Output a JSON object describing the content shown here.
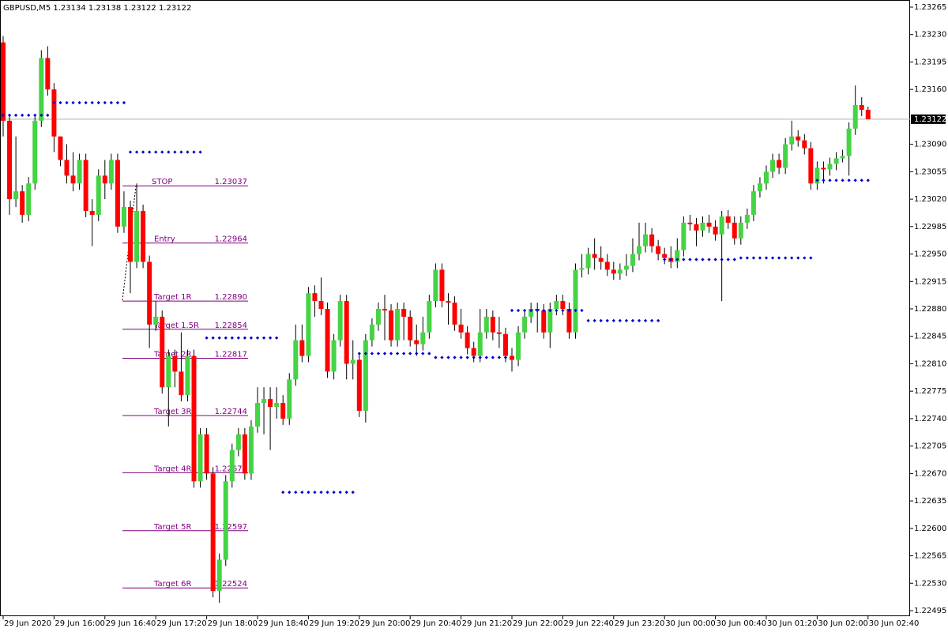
{
  "chart_data": {
    "type": "candlestick",
    "title": "GBPUSD,M5  1.23134 1.23138 1.23122 1.23122",
    "bull_color": "#44d444",
    "bear_color": "#ff0000",
    "level_color": "#0000cc",
    "target_color": "#800080",
    "ylim": [
      1.22495,
      1.23265
    ],
    "yticks": [
      {
        "value": 1.23265,
        "label": "1.23265"
      },
      {
        "value": 1.2323,
        "label": "1.23230"
      },
      {
        "value": 1.23195,
        "label": "1.23195"
      },
      {
        "value": 1.2316,
        "label": "1.23160"
      },
      {
        "value": 1.2309,
        "label": "1.23090"
      },
      {
        "value": 1.23055,
        "label": "1.23055"
      },
      {
        "value": 1.2302,
        "label": "1.23020"
      },
      {
        "value": 1.22985,
        "label": "1.22985"
      },
      {
        "value": 1.2295,
        "label": "1.22950"
      },
      {
        "value": 1.22915,
        "label": "1.22915"
      },
      {
        "value": 1.2288,
        "label": "1.22880"
      },
      {
        "value": 1.22845,
        "label": "1.22845"
      },
      {
        "value": 1.2281,
        "label": "1.22810"
      },
      {
        "value": 1.22775,
        "label": "1.22775"
      },
      {
        "value": 1.2274,
        "label": "1.22740"
      },
      {
        "value": 1.22705,
        "label": "1.22705"
      },
      {
        "value": 1.2267,
        "label": "1.22670"
      },
      {
        "value": 1.22635,
        "label": "1.22635"
      },
      {
        "value": 1.226,
        "label": "1.22600"
      },
      {
        "value": 1.22565,
        "label": "1.22565"
      },
      {
        "value": 1.2253,
        "label": "1.22530"
      },
      {
        "value": 1.22495,
        "label": "1.22495"
      }
    ],
    "xticks": [
      {
        "value": 0,
        "label": "29 Jun 2020"
      },
      {
        "value": 8,
        "label": "29 Jun 16:00"
      },
      {
        "value": 16,
        "label": "29 Jun 16:40"
      },
      {
        "value": 24,
        "label": "29 Jun 17:20"
      },
      {
        "value": 32,
        "label": "29 Jun 18:00"
      },
      {
        "value": 40,
        "label": "29 Jun 18:40"
      },
      {
        "value": 48,
        "label": "29 Jun 19:20"
      },
      {
        "value": 56,
        "label": "29 Jun 20:00"
      },
      {
        "value": 64,
        "label": "29 Jun 20:40"
      },
      {
        "value": 72,
        "label": "29 Jun 21:20"
      },
      {
        "value": 80,
        "label": "29 Jun 22:00"
      },
      {
        "value": 88,
        "label": "29 Jun 22:40"
      },
      {
        "value": 96,
        "label": "29 Jun 23:20"
      },
      {
        "value": 104,
        "label": "30 Jun 00:00"
      },
      {
        "value": 112,
        "label": "30 Jun 00:40"
      },
      {
        "value": 120,
        "label": "30 Jun 01:20"
      },
      {
        "value": 128,
        "label": "30 Jun 02:00"
      },
      {
        "value": 136,
        "label": "30 Jun 02:40"
      }
    ],
    "current_price": 1.23122,
    "open": [
      1.2322,
      1.2312,
      1.2302,
      1.2303,
      1.23,
      1.2304,
      1.2312,
      1.232,
      1.2316,
      1.231,
      1.2307,
      1.2305,
      1.2304,
      1.2307,
      1.23005,
      1.23,
      1.2305,
      1.2304,
      1.2307,
      1.22985,
      1.2301,
      1.2294,
      1.23005,
      1.2294,
      1.2286,
      1.2287,
      1.2278,
      1.2282,
      1.228,
      1.2277,
      1.2282,
      1.2266,
      1.2272,
      1.2267,
      1.2252,
      1.2256,
      1.2266,
      1.227,
      1.2272,
      1.2267,
      1.2273,
      1.2276,
      1.22765,
      1.22755,
      1.2276,
      1.2274,
      1.2279,
      1.2284,
      1.2282,
      1.229,
      1.2289,
      1.2288,
      1.228,
      1.2284,
      1.2289,
      1.2281,
      1.22815,
      1.2275,
      1.2284,
      1.2286,
      1.2288,
      1.22878,
      1.2284,
      1.2288,
      1.2287,
      1.2284,
      1.22835,
      1.2285,
      1.2289,
      1.2293,
      1.2289,
      1.22888,
      1.2286,
      1.2285,
      1.2283,
      1.2282,
      1.2285,
      1.2287,
      1.2285,
      1.22848,
      1.2282,
      1.22815,
      1.2285,
      1.2287,
      1.2288,
      1.22878,
      1.2285,
      1.2288,
      1.2289,
      1.2288,
      1.2285,
      1.2293,
      1.22932,
      1.2295,
      1.22945,
      1.2294,
      1.2293,
      1.22925,
      1.2293,
      1.22935,
      1.2295,
      1.2296,
      1.22975,
      1.2296,
      1.2295,
      1.22945,
      1.2294,
      1.22955,
      1.2299,
      1.22988,
      1.2298,
      1.2299,
      1.22985,
      1.22975,
      1.22998,
      1.2299,
      1.2297,
      1.2299,
      1.23,
      1.2303,
      1.2304,
      1.23055,
      1.2307,
      1.2306,
      1.2309,
      1.231,
      1.23095,
      1.23085,
      1.2304,
      1.2306,
      1.23058,
      1.23065,
      1.23072,
      1.23075,
      1.2311,
      1.2314,
      1.23134
    ],
    "high": [
      1.23228,
      1.23128,
      1.231,
      1.23038,
      1.23048,
      1.23128,
      1.2321,
      1.23215,
      1.23168,
      1.231,
      1.2309,
      1.2308,
      1.23078,
      1.23078,
      1.2302,
      1.23058,
      1.2307,
      1.23078,
      1.23078,
      1.2303,
      1.23018,
      1.2304,
      1.23013,
      1.22948,
      1.2289,
      1.22878,
      1.22828,
      1.22828,
      1.2285,
      1.22828,
      1.22828,
      1.22728,
      1.22728,
      1.22678,
      1.22568,
      1.22668,
      1.22708,
      1.22728,
      1.22728,
      1.22738,
      1.2278,
      1.2278,
      1.2278,
      1.2278,
      1.2277,
      1.22798,
      1.2286,
      1.2286,
      1.22908,
      1.2291,
      1.2292,
      1.22888,
      1.22848,
      1.22898,
      1.22898,
      1.2284,
      1.22823,
      1.22848,
      1.22868,
      1.22888,
      1.22898,
      1.22886,
      1.22888,
      1.22888,
      1.22878,
      1.2286,
      1.2287,
      1.22898,
      1.22938,
      1.22938,
      1.229,
      1.22896,
      1.2288,
      1.22858,
      1.22838,
      1.2288,
      1.2288,
      1.22878,
      1.2287,
      1.22856,
      1.2283,
      1.22858,
      1.22878,
      1.22888,
      1.22888,
      1.22886,
      1.22888,
      1.22898,
      1.22898,
      1.22888,
      1.22938,
      1.2295,
      1.22958,
      1.2297,
      1.2296,
      1.2295,
      1.2294,
      1.22938,
      1.2295,
      1.2297,
      1.2299,
      1.2299,
      1.22983,
      1.22968,
      1.22958,
      1.2296,
      1.2297,
      1.22998,
      1.23,
      1.22996,
      1.22998,
      1.23,
      1.22993,
      1.23005,
      1.23006,
      1.22998,
      1.22998,
      1.23008,
      1.23038,
      1.23048,
      1.23063,
      1.23078,
      1.23078,
      1.23098,
      1.2312,
      1.23108,
      1.23103,
      1.23093,
      1.23068,
      1.23068,
      1.23073,
      1.2308,
      1.23083,
      1.23118,
      1.23165,
      1.2315,
      1.23138
    ],
    "low": [
      1.231,
      1.23,
      1.2301,
      1.2299,
      1.22992,
      1.23032,
      1.23112,
      1.23152,
      1.2308,
      1.23062,
      1.2304,
      1.2303,
      1.23032,
      1.22997,
      1.2296,
      1.22992,
      1.2302,
      1.23032,
      1.22977,
      1.22977,
      1.229,
      1.22932,
      1.22932,
      1.2283,
      1.22852,
      1.22772,
      1.2273,
      1.2278,
      1.22762,
      1.22762,
      1.22652,
      1.22652,
      1.22662,
      1.22512,
      1.22505,
      1.22552,
      1.22652,
      1.22692,
      1.22662,
      1.22662,
      1.22722,
      1.2272,
      1.227,
      1.2274,
      1.22732,
      1.22732,
      1.22782,
      1.22812,
      1.22812,
      1.2287,
      1.22872,
      1.22792,
      1.2279,
      1.22832,
      1.2279,
      1.2279,
      1.22742,
      1.22735,
      1.22832,
      1.22852,
      1.2284,
      1.22832,
      1.22832,
      1.2284,
      1.22832,
      1.2282,
      1.22827,
      1.22842,
      1.22882,
      1.22882,
      1.2286,
      1.22852,
      1.22842,
      1.22822,
      1.22812,
      1.22812,
      1.22842,
      1.2284,
      1.2283,
      1.22812,
      1.228,
      1.22807,
      1.22842,
      1.22862,
      1.2285,
      1.22842,
      1.2283,
      1.22872,
      1.22872,
      1.22842,
      1.22842,
      1.2292,
      1.22924,
      1.2293,
      1.2293,
      1.22922,
      1.22917,
      1.22917,
      1.22922,
      1.22927,
      1.22942,
      1.22952,
      1.22952,
      1.22942,
      1.22937,
      1.22932,
      1.22932,
      1.22947,
      1.2298,
      1.2296,
      1.22972,
      1.22977,
      1.22967,
      1.2289,
      1.22982,
      1.22962,
      1.22962,
      1.22982,
      1.22992,
      1.23022,
      1.23032,
      1.23047,
      1.23052,
      1.23052,
      1.23082,
      1.23087,
      1.23077,
      1.23032,
      1.23032,
      1.2304,
      1.2305,
      1.23057,
      1.23067,
      1.2305,
      1.23102,
      1.23126,
      1.23122
    ],
    "close": [
      1.2312,
      1.2302,
      1.2303,
      1.23,
      1.2304,
      1.2312,
      1.232,
      1.2316,
      1.231,
      1.2307,
      1.2305,
      1.2304,
      1.2307,
      1.23005,
      1.23,
      1.2305,
      1.2304,
      1.2307,
      1.22985,
      1.2301,
      1.2294,
      1.23005,
      1.2294,
      1.2286,
      1.2287,
      1.2278,
      1.2282,
      1.228,
      1.2277,
      1.2282,
      1.2266,
      1.2272,
      1.2267,
      1.2252,
      1.2256,
      1.2266,
      1.227,
      1.2272,
      1.2267,
      1.2273,
      1.2276,
      1.22765,
      1.22755,
      1.2276,
      1.2274,
      1.2279,
      1.2284,
      1.2282,
      1.229,
      1.2289,
      1.2288,
      1.228,
      1.2284,
      1.2289,
      1.2281,
      1.22815,
      1.2275,
      1.2284,
      1.2286,
      1.2288,
      1.22878,
      1.2284,
      1.2288,
      1.2287,
      1.2284,
      1.22835,
      1.2285,
      1.2289,
      1.2293,
      1.2289,
      1.22888,
      1.2286,
      1.2285,
      1.2283,
      1.2282,
      1.2285,
      1.2287,
      1.2285,
      1.22848,
      1.2282,
      1.22815,
      1.2285,
      1.2287,
      1.2288,
      1.22878,
      1.2285,
      1.2288,
      1.2289,
      1.2288,
      1.2285,
      1.2293,
      1.22932,
      1.2295,
      1.22945,
      1.2294,
      1.2293,
      1.22925,
      1.2293,
      1.22935,
      1.2295,
      1.2296,
      1.22975,
      1.2296,
      1.2295,
      1.22945,
      1.2294,
      1.22955,
      1.2299,
      1.22988,
      1.2298,
      1.2299,
      1.22985,
      1.22975,
      1.22998,
      1.2299,
      1.2297,
      1.2299,
      1.23,
      1.2303,
      1.2304,
      1.23055,
      1.2307,
      1.2306,
      1.2309,
      1.231,
      1.23095,
      1.23085,
      1.2304,
      1.2306,
      1.23058,
      1.23065,
      1.23072,
      1.23075,
      1.2311,
      1.2314,
      1.23134,
      1.23122
    ],
    "levels": [
      {
        "value": 1.23127,
        "from": 0,
        "to": 7
      },
      {
        "value": 1.23143,
        "from": 8,
        "to": 19
      },
      {
        "value": 1.2308,
        "from": 20,
        "to": 31
      },
      {
        "value": 1.22843,
        "from": 32,
        "to": 43
      },
      {
        "value": 1.22646,
        "from": 44,
        "to": 55
      },
      {
        "value": 1.22823,
        "from": 56,
        "to": 67
      },
      {
        "value": 1.22818,
        "from": 68,
        "to": 79
      },
      {
        "value": 1.22878,
        "from": 80,
        "to": 91
      },
      {
        "value": 1.22865,
        "from": 92,
        "to": 103
      },
      {
        "value": 1.22943,
        "from": 104,
        "to": 115
      },
      {
        "value": 1.22945,
        "from": 116,
        "to": 127
      },
      {
        "value": 1.23044,
        "from": 128,
        "to": 136
      }
    ],
    "targets": [
      {
        "name": "STOP",
        "price": 1.23037
      },
      {
        "name": "Entry",
        "price": 1.22964
      },
      {
        "name": "Target 1R",
        "price": {
          "value": 1.2289,
          "label": "1.22890"
        }
      },
      {
        "name": "Target 1.5R",
        "price": 1.22854
      },
      {
        "name": "Target 2R",
        "price": 1.22817
      },
      {
        "name": "Target 3R",
        "price": 1.22744
      },
      {
        "name": "Target 4R",
        "price": 1.22671
      },
      {
        "name": "Target 5R",
        "price": 1.22597
      },
      {
        "name": "Target 6R",
        "price": 1.22524
      }
    ]
  }
}
